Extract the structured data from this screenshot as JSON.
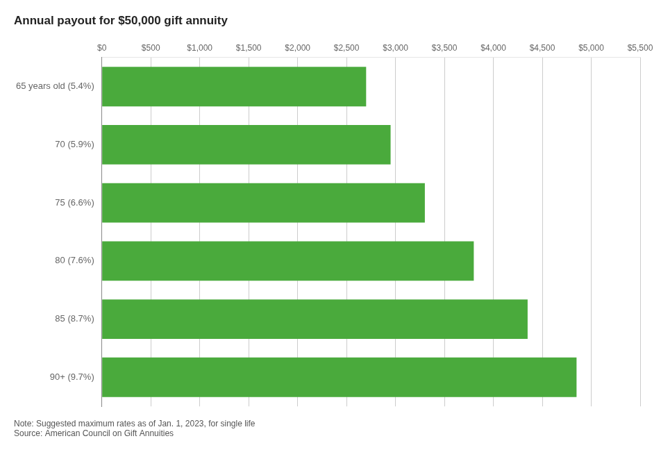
{
  "chart_data": {
    "type": "bar",
    "orientation": "horizontal",
    "title": "Annual payout for $50,000 gift annuity",
    "categories": [
      "65 years old (5.4%)",
      "70 (5.9%)",
      "75 (6.6%)",
      "80 (7.6%)",
      "85 (8.7%)",
      "90+ (9.7%)"
    ],
    "values": [
      2700,
      2950,
      3300,
      3800,
      4350,
      4850
    ],
    "color": "#4aaa3c",
    "xlim": [
      0,
      5500
    ],
    "xticks": [
      {
        "value": 0,
        "label": "$0"
      },
      {
        "value": 500,
        "label": "$500"
      },
      {
        "value": 1000,
        "label": "$1,000"
      },
      {
        "value": 1500,
        "label": "$1,500"
      },
      {
        "value": 2000,
        "label": "$2,000"
      },
      {
        "value": 2500,
        "label": "$2,500"
      },
      {
        "value": 3000,
        "label": "$3,000"
      },
      {
        "value": 3500,
        "label": "$3,500"
      },
      {
        "value": 4000,
        "label": "$4,000"
      },
      {
        "value": 4500,
        "label": "$4,500"
      },
      {
        "value": 5000,
        "label": "$5,000"
      },
      {
        "value": 5500,
        "label": "$5,500"
      }
    ],
    "grid": true,
    "annotations": [
      "Note: Suggested maximum rates as of Jan. 1, 2023, for single life\nSource: American Council on Gift Annuities"
    ]
  }
}
